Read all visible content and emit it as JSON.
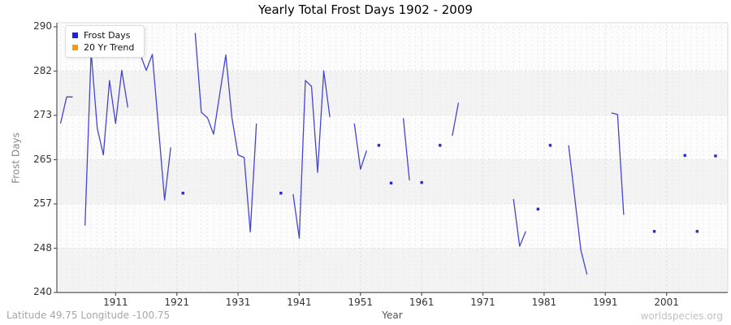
{
  "title": "Yearly Total Frost Days 1902 - 2009",
  "footer": {
    "coordinates": "Latitude 49.75 Longitude -100.75",
    "watermark": "worldspecies.org"
  },
  "legend": [
    {
      "label": "Frost Days",
      "color": "#2222dd"
    },
    {
      "label": "20 Yr Trend",
      "color": "#ff9900"
    }
  ],
  "axes": {
    "xlabel": "Year",
    "ylabel": "Frost Days",
    "xticks": [
      1911,
      1921,
      1931,
      1941,
      1951,
      1961,
      1971,
      1981,
      1991,
      2001
    ],
    "yticks": [
      290,
      282,
      273,
      265,
      257,
      248,
      240
    ]
  },
  "colors": {
    "line": "#4444d5",
    "marker": "#2a2ac8",
    "trend": "#ff9900",
    "band": "#f3f3f3",
    "band_alt": "#fcfcfc",
    "grid_h": "#e0e0e0",
    "grid_minor_v": "#eaeaea",
    "grid_major_v": "#dcdcdc",
    "spine": "#555555",
    "border": "#d8d8d8"
  },
  "chart_data": {
    "type": "line",
    "title": "Yearly Total Frost Days 1902 - 2009",
    "xlabel": "Year",
    "ylabel": "Frost Days",
    "xlim": [
      1901.4,
      2011.0
    ],
    "ylim": [
      240,
      290
    ],
    "grid": true,
    "legend_position": "top-left",
    "x_start": 1902,
    "x_end": 2009,
    "series": [
      {
        "name": "Frost Days",
        "color": "#4444d5",
        "values": [
          271.8,
          276.8,
          276.8,
          null,
          252.6,
          285.3,
          270.9,
          265.9,
          279.9,
          271.8,
          281.8,
          274.8,
          null,
          284.9,
          281.8,
          284.8,
          271.1,
          257.4,
          267.3,
          null,
          258.7,
          null,
          288.8,
          273.9,
          272.9,
          269.8,
          277.3,
          284.7,
          272.9,
          265.9,
          265.4,
          251.4,
          271.8,
          null,
          null,
          null,
          258.7,
          null,
          258.5,
          250.2,
          279.9,
          278.8,
          262.6,
          281.7,
          273.0,
          null,
          null,
          null,
          271.8,
          263.2,
          266.7,
          null,
          267.7,
          null,
          260.6,
          null,
          272.8,
          261.1,
          null,
          260.7,
          null,
          null,
          267.7,
          null,
          269.5,
          275.7,
          null,
          null,
          null,
          null,
          null,
          null,
          null,
          null,
          257.6,
          248.7,
          251.5,
          null,
          255.7,
          null,
          267.7,
          null,
          null,
          267.7,
          257.9,
          248.0,
          243.4,
          null,
          null,
          null,
          273.8,
          273.5,
          254.6,
          null,
          null,
          null,
          null,
          251.5,
          null,
          null,
          null,
          null,
          265.8,
          null,
          251.5,
          null,
          null,
          265.7
        ]
      },
      {
        "name": "20 Yr Trend",
        "color": "#ff9900",
        "values": []
      }
    ]
  }
}
